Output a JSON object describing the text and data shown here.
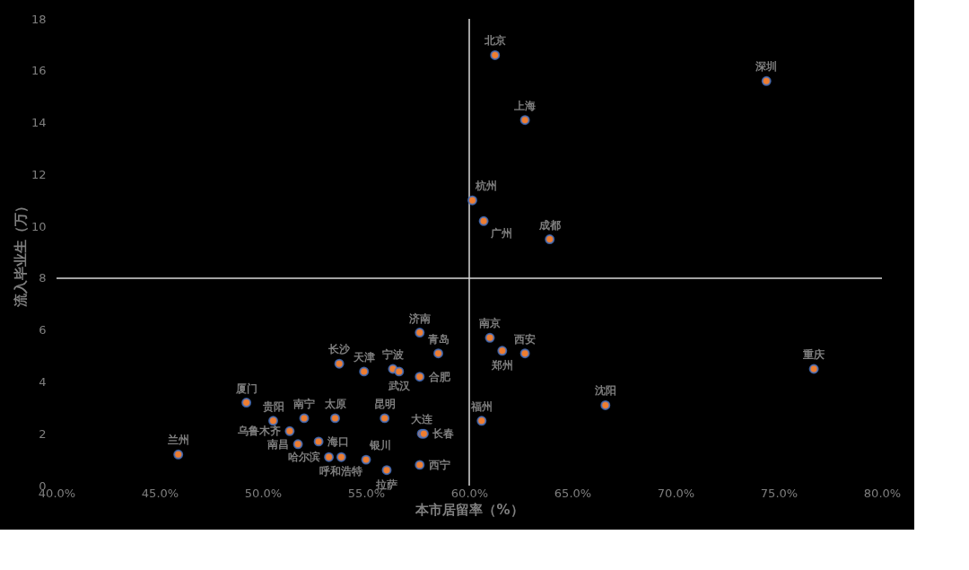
{
  "chart_data": {
    "type": "scatter",
    "xlabel": "本市居留率（%）",
    "ylabel": "流入毕业生（万）",
    "xlim": [
      40,
      80
    ],
    "xticks": [
      {
        "value": 40,
        "label": "40.0%"
      },
      {
        "value": 45,
        "label": "45.0%"
      },
      {
        "value": 50,
        "label": "50.0%"
      },
      {
        "value": 55,
        "label": "55.0%"
      },
      {
        "value": 60,
        "label": "60.0%"
      },
      {
        "value": 65,
        "label": "65.0%"
      },
      {
        "value": 70,
        "label": "70.0%"
      },
      {
        "value": 75,
        "label": "75.0%"
      },
      {
        "value": 80,
        "label": "80.0%"
      }
    ],
    "ylim": [
      0,
      18
    ],
    "yticks": [
      0,
      2,
      4,
      6,
      8,
      10,
      12,
      14,
      16,
      18
    ],
    "grid": false,
    "marker": "circle",
    "ref_lines": [
      {
        "axis": "x",
        "value": 60,
        "color": "#d9d9d9"
      },
      {
        "axis": "y",
        "value": 8,
        "color": "#d9d9d9"
      }
    ],
    "series": [
      {
        "color": "#ed7d31",
        "x": [
          61.25,
          74.4,
          62.7,
          60.15,
          60.7,
          63.9,
          57.6,
          58.5,
          61.0,
          61.6,
          62.7,
          76.7,
          53.7,
          54.9,
          56.3,
          56.6,
          57.6,
          49.2,
          50.5,
          52.0,
          53.5,
          55.9,
          60.6,
          66.6,
          51.3,
          51.7,
          52.7,
          57.7,
          57.8,
          53.2,
          53.8,
          55.0,
          56.0,
          57.6,
          45.9
        ],
        "values": [
          16.6,
          15.6,
          14.1,
          11.0,
          10.2,
          9.5,
          5.9,
          5.1,
          5.7,
          5.2,
          5.1,
          4.5,
          4.7,
          4.4,
          4.5,
          4.4,
          4.2,
          3.2,
          2.5,
          2.6,
          2.6,
          2.6,
          2.5,
          3.1,
          2.1,
          1.6,
          1.7,
          2.0,
          2.0,
          1.1,
          1.1,
          1.0,
          0.6,
          0.8,
          1.2
        ]
      }
    ],
    "annotations": [
      {
        "text": "北京",
        "x": 61.25,
        "y": 16.6
      },
      {
        "text": "深圳",
        "x": 74.4,
        "y": 15.6
      },
      {
        "text": "上海",
        "x": 62.7,
        "y": 14.1
      },
      {
        "text": "杭州",
        "x": 60.15,
        "y": 11.0
      },
      {
        "text": "广州",
        "x": 60.7,
        "y": 10.2
      },
      {
        "text": "成都",
        "x": 63.9,
        "y": 9.5
      },
      {
        "text": "济南",
        "x": 57.6,
        "y": 5.9
      },
      {
        "text": "青岛",
        "x": 58.5,
        "y": 5.1
      },
      {
        "text": "南京",
        "x": 61.0,
        "y": 5.7
      },
      {
        "text": "郑州",
        "x": 61.6,
        "y": 5.2
      },
      {
        "text": "西安",
        "x": 62.7,
        "y": 5.1
      },
      {
        "text": "重庆",
        "x": 76.7,
        "y": 4.5
      },
      {
        "text": "长沙",
        "x": 53.7,
        "y": 4.7
      },
      {
        "text": "天津",
        "x": 54.9,
        "y": 4.4
      },
      {
        "text": "宁波",
        "x": 56.3,
        "y": 4.5
      },
      {
        "text": "武汉",
        "x": 56.6,
        "y": 4.4
      },
      {
        "text": "合肥",
        "x": 57.6,
        "y": 4.2
      },
      {
        "text": "厦门",
        "x": 49.2,
        "y": 3.2
      },
      {
        "text": "贵阳",
        "x": 50.5,
        "y": 2.5
      },
      {
        "text": "南宁",
        "x": 52.0,
        "y": 2.6
      },
      {
        "text": "太原",
        "x": 53.5,
        "y": 2.6
      },
      {
        "text": "昆明",
        "x": 55.9,
        "y": 2.6
      },
      {
        "text": "福州",
        "x": 60.6,
        "y": 2.5
      },
      {
        "text": "沈阳",
        "x": 66.6,
        "y": 3.1
      },
      {
        "text": "乌鲁木齐",
        "x": 51.3,
        "y": 2.1
      },
      {
        "text": "南昌",
        "x": 51.7,
        "y": 1.6
      },
      {
        "text": "海口",
        "x": 52.7,
        "y": 1.7
      },
      {
        "text": "大连",
        "x": 57.7,
        "y": 2.0
      },
      {
        "text": "长春",
        "x": 57.8,
        "y": 2.0
      },
      {
        "text": "哈尔滨",
        "x": 53.2,
        "y": 1.1
      },
      {
        "text": "呼和浩特",
        "x": 53.8,
        "y": 1.1
      },
      {
        "text": "银川",
        "x": 55.0,
        "y": 1.0
      },
      {
        "text": "拉萨",
        "x": 56.0,
        "y": 0.6
      },
      {
        "text": "西宁",
        "x": 57.6,
        "y": 0.8
      },
      {
        "text": "兰州",
        "x": 45.9,
        "y": 1.2
      }
    ]
  }
}
